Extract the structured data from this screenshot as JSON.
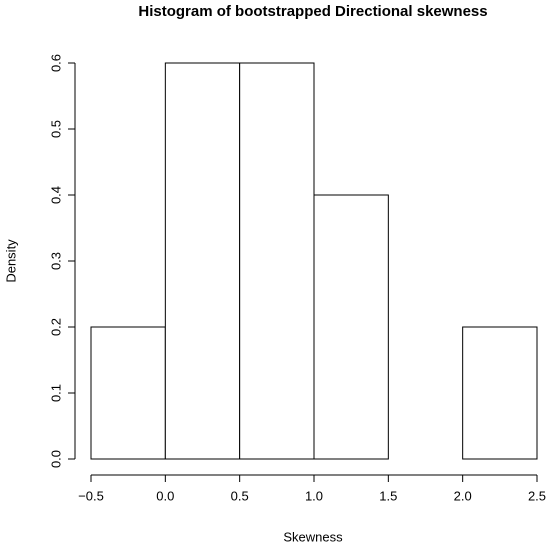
{
  "chart_data": {
    "type": "histogram",
    "title": "Histogram of bootstrapped Directional skewness",
    "x_label": "Skewness",
    "y_label": "Density",
    "bins": [
      -0.5,
      0,
      0.5,
      1,
      1.5,
      2,
      2.5
    ],
    "values": [
      0.2,
      0.6,
      0.6,
      0.4,
      0,
      0.2
    ],
    "color": "#ffffff",
    "xlim": [
      -0.5,
      2.5
    ],
    "ylim": [
      0,
      0.6
    ],
    "xticks": [
      {
        "value": -0.5,
        "label": "−0.5"
      },
      {
        "value": 0,
        "label": "0.0"
      },
      0.5,
      {
        "value": 1,
        "label": "1.0"
      },
      1.5,
      {
        "value": 2,
        "label": "2.0"
      },
      2.5
    ],
    "yticks": [
      {
        "value": 0,
        "label": "0.0"
      },
      0.1,
      0.2,
      0.3,
      0.4,
      0.5,
      0.6
    ]
  }
}
